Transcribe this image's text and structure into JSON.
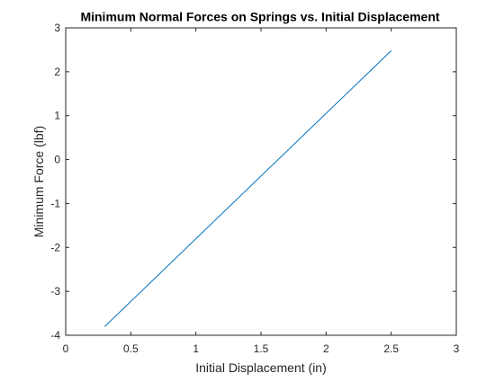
{
  "chart_data": {
    "type": "line",
    "title": "Minimum Normal Forces on Springs vs. Initial Displacement",
    "xlabel": "Initial Displacement (in)",
    "ylabel": "Minimum Force (lbf)",
    "xlim": [
      0,
      3
    ],
    "ylim": [
      -4,
      3
    ],
    "xticks": [
      0,
      0.5,
      1,
      1.5,
      2,
      2.5,
      3
    ],
    "xtick_labels": [
      "0",
      "0.5",
      "1",
      "1.5",
      "2",
      "2.5",
      "3"
    ],
    "yticks": [
      -4,
      -3,
      -2,
      -1,
      0,
      1,
      2,
      3
    ],
    "ytick_labels": [
      "-4",
      "-3",
      "-2",
      "-1",
      "0",
      "1",
      "2",
      "3"
    ],
    "grid": false,
    "series": [
      {
        "x": [
          0.3,
          2.5
        ],
        "y": [
          -3.8,
          2.48
        ],
        "color": "#0072BD"
      }
    ]
  }
}
